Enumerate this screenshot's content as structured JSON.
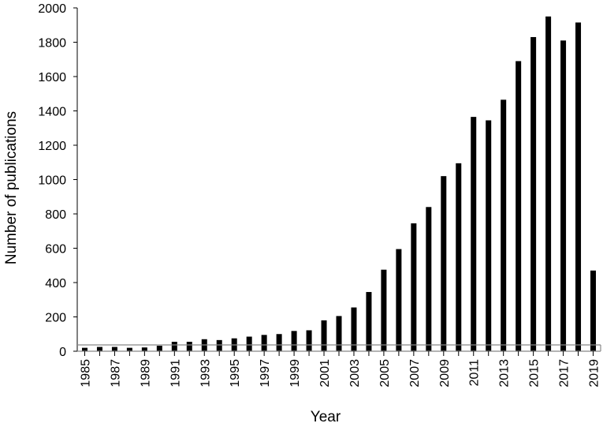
{
  "chart_data": {
    "type": "bar",
    "xlabel": "Year",
    "ylabel": "Number of publications",
    "ylim": [
      0,
      2000
    ],
    "yticks": [
      0,
      200,
      400,
      600,
      800,
      1000,
      1200,
      1400,
      1600,
      1800,
      2000
    ],
    "x_tick_labels": [
      "1985",
      "1987",
      "1989",
      "1991",
      "1993",
      "1995",
      "1997",
      "1999",
      "2001",
      "2003",
      "2005",
      "2007",
      "2009",
      "2011",
      "2013",
      "2015",
      "2017",
      "2019"
    ],
    "categories": [
      1985,
      1986,
      1987,
      1988,
      1989,
      1990,
      1991,
      1992,
      1993,
      1994,
      1995,
      1996,
      1997,
      1998,
      1999,
      2000,
      2001,
      2002,
      2003,
      2004,
      2005,
      2006,
      2007,
      2008,
      2009,
      2010,
      2011,
      2012,
      2013,
      2014,
      2015,
      2016,
      2017,
      2018,
      2019
    ],
    "values": [
      20,
      25,
      25,
      20,
      22,
      32,
      55,
      55,
      70,
      65,
      75,
      85,
      95,
      100,
      118,
      122,
      180,
      205,
      255,
      345,
      475,
      595,
      745,
      840,
      1020,
      1095,
      1365,
      1345,
      1465,
      1690,
      1830,
      1950,
      1810,
      1915,
      470
    ],
    "bar_color": "#000000",
    "grid": false,
    "legend": "none"
  }
}
